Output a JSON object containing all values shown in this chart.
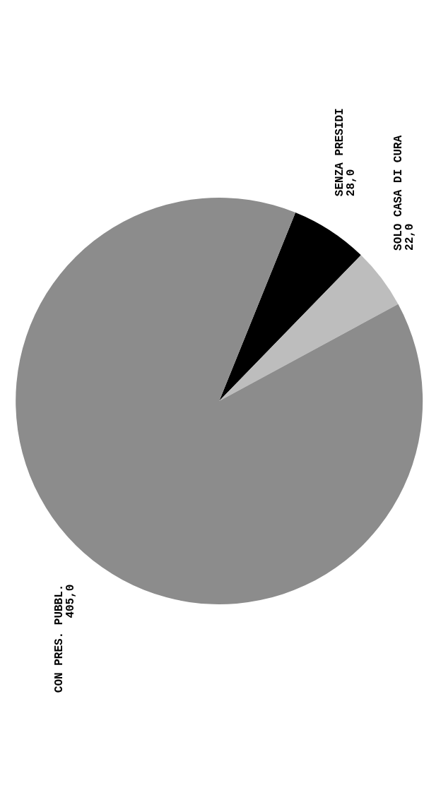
{
  "chart_data": {
    "type": "pie",
    "categories": [
      "SENZA PRESIDI",
      "SOLO CASA DI CURA",
      "CON PRES. PUBBL."
    ],
    "values": [
      28.0,
      22.0,
      405.0
    ],
    "value_labels": [
      "28,0",
      "22,0",
      "405,0"
    ],
    "colors": [
      "#000000",
      "#bdbdbd",
      "#8c8c8c"
    ],
    "legend": false
  }
}
